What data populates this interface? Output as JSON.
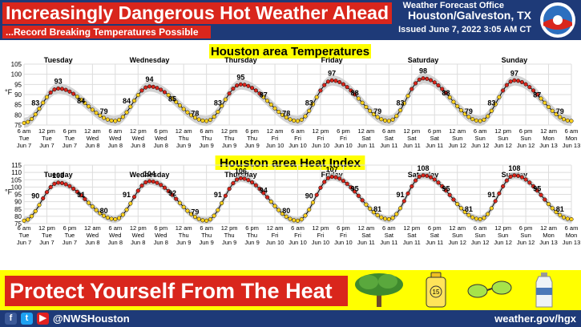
{
  "header": {
    "title": "Increasingly Dangerous Hot Weather Ahead",
    "subtitle": "...Record Breaking Temperatures Possible",
    "office": "Weather Forecast Office",
    "city": "Houston/Galveston, TX",
    "issued": "Issued June 7, 2022 3:05 AM CT"
  },
  "banner": {
    "text": "Protect Yourself From The Heat"
  },
  "footer": {
    "handle": "@NWSHouston",
    "url": "weather.gov/hgx"
  },
  "colors": {
    "header_bg": "#1e3a78",
    "title_bg": "#d9261c",
    "banner_bg": "#ffff00",
    "hot_dot": "#d9261c",
    "mild_dot": "#ffd21e",
    "range_band": "#c8c8c8"
  },
  "icons": [
    "facebook-icon",
    "twitter-icon",
    "youtube-icon",
    "tree-shade-icon",
    "sunscreen-icon",
    "sunglasses-icon",
    "water-bottle-icon",
    "noaa-logo-icon"
  ],
  "chart_data": [
    {
      "type": "line",
      "title": "Houston area Temperatures",
      "ylabel": "°F",
      "ylim": [
        75,
        105
      ],
      "yticks": [
        75,
        80,
        85,
        90,
        95,
        100,
        105
      ],
      "days": [
        "Tuesday",
        "Wednesday",
        "Thursday",
        "Friday",
        "Saturday",
        "Sunday"
      ],
      "xticks": [
        [
          "6 am",
          "Tue",
          "Jun 7"
        ],
        [
          "12 pm",
          "Tue",
          "Jun 7"
        ],
        [
          "6 pm",
          "Tue",
          "Jun 7"
        ],
        [
          "12 am",
          "Wed",
          "Jun 8"
        ],
        [
          "6 am",
          "Wed",
          "Jun 8"
        ],
        [
          "12 pm",
          "Wed",
          "Jun 8"
        ],
        [
          "6 pm",
          "Wed",
          "Jun 8"
        ],
        [
          "12 am",
          "Thu",
          "Jun 9"
        ],
        [
          "6 am",
          "Thu",
          "Jun 9"
        ],
        [
          "12 pm",
          "Thu",
          "Jun 9"
        ],
        [
          "6 pm",
          "Thu",
          "Jun 9"
        ],
        [
          "12 am",
          "Fri",
          "Jun 10"
        ],
        [
          "6 am",
          "Fri",
          "Jun 10"
        ],
        [
          "12 pm",
          "Fri",
          "Jun 10"
        ],
        [
          "6 pm",
          "Fri",
          "Jun 10"
        ],
        [
          "12 am",
          "Sat",
          "Jun 11"
        ],
        [
          "6 am",
          "Sat",
          "Jun 11"
        ],
        [
          "12 pm",
          "Sat",
          "Jun 11"
        ],
        [
          "6 pm",
          "Sat",
          "Jun 11"
        ],
        [
          "12 am",
          "Sun",
          "Jun 12"
        ],
        [
          "6 am",
          "Sun",
          "Jun 12"
        ],
        [
          "12 pm",
          "Sun",
          "Jun 12"
        ],
        [
          "6 pm",
          "Sun",
          "Jun 12"
        ],
        [
          "12 am",
          "Mon",
          "Jun 13"
        ],
        [
          "6 am",
          "Mon",
          "Jun 13"
        ]
      ],
      "x_hours_range": [
        0,
        144
      ],
      "daily": [
        {
          "min": 76,
          "max": 93,
          "labels": [
            83,
            93,
            84,
            79
          ]
        },
        {
          "min": 77,
          "max": 94,
          "labels": [
            84,
            94,
            85,
            78
          ]
        },
        {
          "min": 77,
          "max": 95,
          "labels": [
            83,
            95,
            87,
            78
          ]
        },
        {
          "min": 77,
          "max": 97,
          "labels": [
            83,
            97,
            88,
            79
          ]
        },
        {
          "min": 77,
          "max": 98,
          "labels": [
            83,
            98,
            88,
            79
          ]
        },
        {
          "min": 77,
          "max": 97,
          "labels": [
            83,
            97,
            87,
            79
          ]
        }
      ],
      "end_value": 77,
      "label_hours": [
        3,
        9,
        15,
        21
      ],
      "hot_threshold": 90
    },
    {
      "type": "line",
      "title": "Houston area Heat Index",
      "ylabel": "°F",
      "ylim": [
        75,
        115
      ],
      "yticks": [
        75,
        80,
        85,
        90,
        95,
        100,
        105,
        110,
        115
      ],
      "days": [
        "Tuesday",
        "Wednesday",
        "Thursday",
        "Friday",
        "Saturday",
        "Sunday"
      ],
      "xticks": [
        [
          "6 am",
          "Tue",
          "Jun 7"
        ],
        [
          "12 pm",
          "Tue",
          "Jun 7"
        ],
        [
          "6 pm",
          "Tue",
          "Jun 7"
        ],
        [
          "12 am",
          "Wed",
          "Jun 8"
        ],
        [
          "6 am",
          "Wed",
          "Jun 8"
        ],
        [
          "12 pm",
          "Wed",
          "Jun 8"
        ],
        [
          "6 pm",
          "Wed",
          "Jun 8"
        ],
        [
          "12 am",
          "Thu",
          "Jun 9"
        ],
        [
          "6 am",
          "Thu",
          "Jun 9"
        ],
        [
          "12 pm",
          "Thu",
          "Jun 9"
        ],
        [
          "6 pm",
          "Thu",
          "Jun 9"
        ],
        [
          "12 am",
          "Fri",
          "Jun 10"
        ],
        [
          "6 am",
          "Fri",
          "Jun 10"
        ],
        [
          "12 pm",
          "Fri",
          "Jun 10"
        ],
        [
          "6 pm",
          "Fri",
          "Jun 10"
        ],
        [
          "12 am",
          "Sat",
          "Jun 11"
        ],
        [
          "6 am",
          "Sat",
          "Jun 11"
        ],
        [
          "12 pm",
          "Sat",
          "Jun 11"
        ],
        [
          "6 pm",
          "Sat",
          "Jun 11"
        ],
        [
          "12 am",
          "Sun",
          "Jun 12"
        ],
        [
          "6 am",
          "Sun",
          "Jun 12"
        ],
        [
          "12 pm",
          "Sun",
          "Jun 12"
        ],
        [
          "6 pm",
          "Sun",
          "Jun 12"
        ],
        [
          "12 am",
          "Mon",
          "Jun 13"
        ],
        [
          "6 am",
          "Mon",
          "Jun 13"
        ]
      ],
      "x_hours_range": [
        0,
        144
      ],
      "daily": [
        {
          "min": 77,
          "max": 103,
          "labels": [
            90,
            103,
            91,
            80
          ]
        },
        {
          "min": 78,
          "max": 104,
          "labels": [
            91,
            104,
            92,
            79
          ]
        },
        {
          "min": 77,
          "max": 106,
          "labels": [
            91,
            106,
            94,
            80
          ]
        },
        {
          "min": 77,
          "max": 107,
          "labels": [
            90,
            107,
            95,
            81
          ]
        },
        {
          "min": 78,
          "max": 108,
          "labels": [
            91,
            108,
            95,
            81
          ]
        },
        {
          "min": 78,
          "max": 108,
          "labels": [
            91,
            108,
            95,
            81
          ]
        }
      ],
      "end_value": 78,
      "label_hours": [
        3,
        9,
        15,
        21
      ],
      "hot_threshold": 90
    }
  ]
}
